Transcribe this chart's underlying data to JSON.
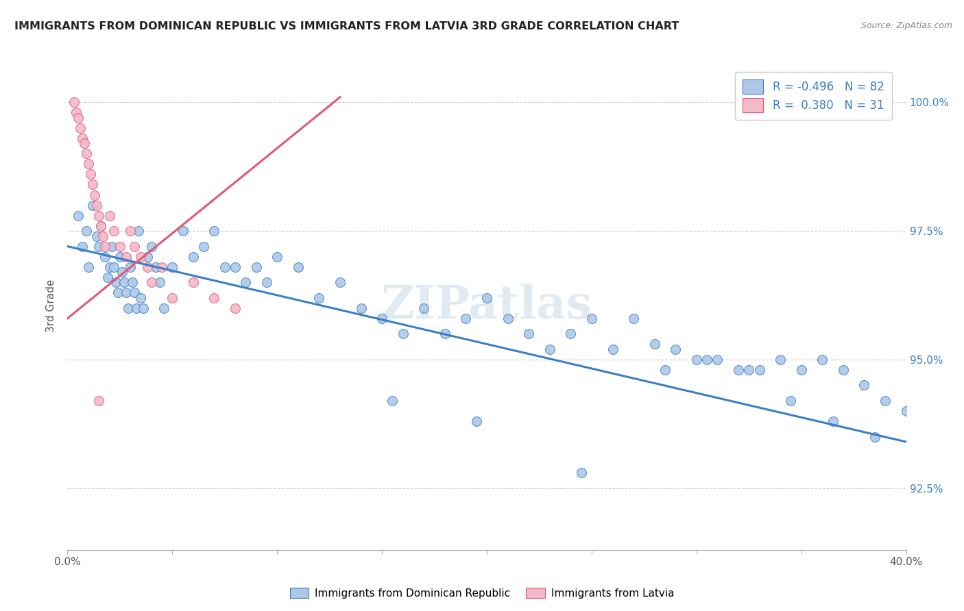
{
  "title": "IMMIGRANTS FROM DOMINICAN REPUBLIC VS IMMIGRANTS FROM LATVIA 3RD GRADE CORRELATION CHART",
  "source": "Source: ZipAtlas.com",
  "ylabel": "3rd Grade",
  "ytick_labels": [
    "92.5%",
    "95.0%",
    "97.5%",
    "100.0%"
  ],
  "ytick_values": [
    0.925,
    0.95,
    0.975,
    1.0
  ],
  "xmin": 0.0,
  "xmax": 0.4,
  "ymin": 0.913,
  "ymax": 1.008,
  "legend_blue_R": "-0.496",
  "legend_blue_N": "82",
  "legend_pink_R": "0.380",
  "legend_pink_N": "31",
  "blue_color": "#adc8e8",
  "pink_color": "#f5b8c8",
  "blue_line_color": "#3a7ec8",
  "pink_line_color": "#e05878",
  "watermark": "ZIPatlas",
  "blue_scatter_x": [
    0.005,
    0.007,
    0.009,
    0.01,
    0.012,
    0.014,
    0.015,
    0.016,
    0.018,
    0.019,
    0.02,
    0.021,
    0.022,
    0.023,
    0.024,
    0.025,
    0.026,
    0.027,
    0.028,
    0.029,
    0.03,
    0.031,
    0.032,
    0.033,
    0.034,
    0.035,
    0.036,
    0.038,
    0.04,
    0.042,
    0.044,
    0.046,
    0.05,
    0.055,
    0.06,
    0.065,
    0.07,
    0.075,
    0.08,
    0.085,
    0.09,
    0.095,
    0.1,
    0.11,
    0.12,
    0.13,
    0.14,
    0.15,
    0.16,
    0.17,
    0.18,
    0.19,
    0.2,
    0.21,
    0.22,
    0.23,
    0.24,
    0.25,
    0.26,
    0.27,
    0.28,
    0.29,
    0.3,
    0.31,
    0.32,
    0.33,
    0.34,
    0.35,
    0.36,
    0.37,
    0.38,
    0.39,
    0.4,
    0.155,
    0.195,
    0.245,
    0.285,
    0.305,
    0.325,
    0.345,
    0.365,
    0.385
  ],
  "blue_scatter_y": [
    0.978,
    0.972,
    0.975,
    0.968,
    0.98,
    0.974,
    0.972,
    0.976,
    0.97,
    0.966,
    0.968,
    0.972,
    0.968,
    0.965,
    0.963,
    0.97,
    0.967,
    0.965,
    0.963,
    0.96,
    0.968,
    0.965,
    0.963,
    0.96,
    0.975,
    0.962,
    0.96,
    0.97,
    0.972,
    0.968,
    0.965,
    0.96,
    0.968,
    0.975,
    0.97,
    0.972,
    0.975,
    0.968,
    0.968,
    0.965,
    0.968,
    0.965,
    0.97,
    0.968,
    0.962,
    0.965,
    0.96,
    0.958,
    0.955,
    0.96,
    0.955,
    0.958,
    0.962,
    0.958,
    0.955,
    0.952,
    0.955,
    0.958,
    0.952,
    0.958,
    0.953,
    0.952,
    0.95,
    0.95,
    0.948,
    0.948,
    0.95,
    0.948,
    0.95,
    0.948,
    0.945,
    0.942,
    0.94,
    0.942,
    0.938,
    0.928,
    0.948,
    0.95,
    0.948,
    0.942,
    0.938,
    0.935
  ],
  "pink_scatter_x": [
    0.003,
    0.004,
    0.005,
    0.006,
    0.007,
    0.008,
    0.009,
    0.01,
    0.011,
    0.012,
    0.013,
    0.014,
    0.015,
    0.016,
    0.017,
    0.018,
    0.02,
    0.022,
    0.025,
    0.028,
    0.03,
    0.032,
    0.035,
    0.038,
    0.04,
    0.045,
    0.05,
    0.06,
    0.07,
    0.08,
    0.015
  ],
  "pink_scatter_y": [
    1.0,
    0.998,
    0.997,
    0.995,
    0.993,
    0.992,
    0.99,
    0.988,
    0.986,
    0.984,
    0.982,
    0.98,
    0.978,
    0.976,
    0.974,
    0.972,
    0.978,
    0.975,
    0.972,
    0.97,
    0.975,
    0.972,
    0.97,
    0.968,
    0.965,
    0.968,
    0.962,
    0.965,
    0.962,
    0.96,
    0.942
  ],
  "blue_trend_x": [
    0.0,
    0.4
  ],
  "blue_trend_y": [
    0.972,
    0.934
  ],
  "pink_trend_x": [
    0.0,
    0.13
  ],
  "pink_trend_y": [
    0.958,
    1.001
  ]
}
